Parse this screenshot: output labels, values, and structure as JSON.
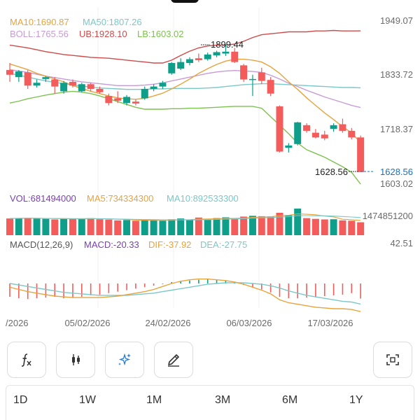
{
  "legend_main": {
    "ma10": "MA10:1690.87",
    "ma50": "MA50:1807.26",
    "boll": "BOLL:1765.56",
    "ub": "UB:1928.10",
    "lb": "LB:1603.02"
  },
  "legend_vol": {
    "vol": "VOL:681494000",
    "ma5": "MA5:734334300",
    "ma10": "MA10:892533300"
  },
  "legend_macd": {
    "name": "MACD(12,26,9)",
    "macd": "MACD:-20.33",
    "dif": "DIF:-37.92",
    "dea": "DEA:-27.75"
  },
  "axis_main": [
    "1949.07",
    "1833.72",
    "1718.37",
    "1603.02"
  ],
  "axis_vol_max": "1474851200",
  "axis_macd_max": "42.51",
  "high_annotation": "1899.44",
  "low_annotation": "1628.56",
  "last_price": "1628.56",
  "dates": [
    "/2026",
    "05/02/2026",
    "24/02/2026",
    "06/03/2026",
    "17/03/2026"
  ],
  "toolbar": {
    "icons": [
      "function-icon",
      "candlestick-icon",
      "sparkle-icon",
      "pencil-icon",
      "fullscreen-icon"
    ]
  },
  "periods": [
    "1D",
    "1W",
    "1M",
    "3M",
    "6M",
    "1Y"
  ],
  "colors": {
    "up": "#0e9e8a",
    "down": "#f45b5b",
    "ma10": "#e8a33b",
    "ma50": "#7bc8c8",
    "boll": "#c79ad9",
    "ub": "#cf4b4b",
    "lb": "#7cc24e",
    "macd": "#7a3fb5"
  },
  "chart_data": {
    "type": "candlestick",
    "price_range": [
      1603.02,
      1949.07
    ],
    "candles": [
      {
        "o": 1845,
        "h": 1860,
        "l": 1820,
        "c": 1835
      },
      {
        "o": 1830,
        "h": 1845,
        "l": 1820,
        "c": 1842
      },
      {
        "o": 1840,
        "h": 1845,
        "l": 1805,
        "c": 1812
      },
      {
        "o": 1812,
        "h": 1825,
        "l": 1808,
        "c": 1818
      },
      {
        "o": 1826,
        "h": 1832,
        "l": 1820,
        "c": 1830
      },
      {
        "o": 1825,
        "h": 1830,
        "l": 1795,
        "c": 1810
      },
      {
        "o": 1800,
        "h": 1822,
        "l": 1795,
        "c": 1818
      },
      {
        "o": 1820,
        "h": 1825,
        "l": 1808,
        "c": 1812
      },
      {
        "o": 1800,
        "h": 1818,
        "l": 1798,
        "c": 1815
      },
      {
        "o": 1815,
        "h": 1818,
        "l": 1800,
        "c": 1805
      },
      {
        "o": 1805,
        "h": 1810,
        "l": 1795,
        "c": 1798
      },
      {
        "o": 1790,
        "h": 1795,
        "l": 1770,
        "c": 1775
      },
      {
        "o": 1785,
        "h": 1800,
        "l": 1775,
        "c": 1780
      },
      {
        "o": 1775,
        "h": 1792,
        "l": 1770,
        "c": 1788
      },
      {
        "o": 1778,
        "h": 1782,
        "l": 1770,
        "c": 1774
      },
      {
        "o": 1785,
        "h": 1810,
        "l": 1782,
        "c": 1805
      },
      {
        "o": 1805,
        "h": 1815,
        "l": 1800,
        "c": 1810
      },
      {
        "o": 1810,
        "h": 1822,
        "l": 1805,
        "c": 1818
      },
      {
        "o": 1838,
        "h": 1862,
        "l": 1835,
        "c": 1860
      },
      {
        "o": 1848,
        "h": 1870,
        "l": 1845,
        "c": 1862
      },
      {
        "o": 1860,
        "h": 1872,
        "l": 1855,
        "c": 1868
      },
      {
        "o": 1870,
        "h": 1880,
        "l": 1862,
        "c": 1866
      },
      {
        "o": 1868,
        "h": 1882,
        "l": 1865,
        "c": 1878
      },
      {
        "o": 1876,
        "h": 1886,
        "l": 1872,
        "c": 1883
      },
      {
        "o": 1880,
        "h": 1899.44,
        "l": 1875,
        "c": 1884
      },
      {
        "o": 1884,
        "h": 1892,
        "l": 1860,
        "c": 1862
      },
      {
        "o": 1855,
        "h": 1858,
        "l": 1820,
        "c": 1825
      },
      {
        "o": 1825,
        "h": 1835,
        "l": 1790,
        "c": 1826
      },
      {
        "o": 1840,
        "h": 1850,
        "l": 1815,
        "c": 1822
      },
      {
        "o": 1824,
        "h": 1830,
        "l": 1790,
        "c": 1795
      },
      {
        "o": 1768,
        "h": 1770,
        "l": 1670,
        "c": 1672
      },
      {
        "o": 1680,
        "h": 1690,
        "l": 1670,
        "c": 1685
      },
      {
        "o": 1688,
        "h": 1735,
        "l": 1685,
        "c": 1734
      },
      {
        "o": 1728,
        "h": 1732,
        "l": 1712,
        "c": 1716
      },
      {
        "o": 1712,
        "h": 1720,
        "l": 1700,
        "c": 1702
      },
      {
        "o": 1708,
        "h": 1716,
        "l": 1696,
        "c": 1700
      },
      {
        "o": 1720,
        "h": 1732,
        "l": 1714,
        "c": 1728
      },
      {
        "o": 1730,
        "h": 1742,
        "l": 1712,
        "c": 1716
      },
      {
        "o": 1716,
        "h": 1722,
        "l": 1698,
        "c": 1702
      },
      {
        "o": 1702,
        "h": 1706,
        "l": 1628.56,
        "c": 1628.56
      }
    ],
    "ma10": [
      1858,
      1852,
      1846,
      1838,
      1832,
      1826,
      1820,
      1812,
      1806,
      1800,
      1795,
      1790,
      1786,
      1784,
      1783,
      1785,
      1790,
      1796,
      1805,
      1815,
      1826,
      1838,
      1848,
      1857,
      1864,
      1868,
      1868,
      1866,
      1862,
      1852,
      1838,
      1820,
      1804,
      1786,
      1770,
      1754,
      1740,
      1725,
      1712,
      1690.87
    ],
    "ma50": [
      1838,
      1834,
      1830,
      1826,
      1822,
      1819,
      1816,
      1813,
      1811,
      1809,
      1807,
      1806,
      1805,
      1804,
      1804,
      1804,
      1805,
      1805,
      1806,
      1806,
      1806,
      1806,
      1807,
      1808,
      1810,
      1812,
      1814,
      1815,
      1816,
      1816,
      1815,
      1814,
      1813,
      1812,
      1811,
      1810,
      1809,
      1808,
      1808,
      1807.26
    ],
    "ub": [
      1898,
      1895,
      1892,
      1888,
      1884,
      1881,
      1878,
      1876,
      1874,
      1872,
      1871,
      1870,
      1868,
      1866,
      1864,
      1862,
      1860,
      1860,
      1866,
      1876,
      1885,
      1892,
      1896,
      1898,
      1898,
      1900,
      1906,
      1914,
      1920,
      1922,
      1924,
      1926,
      1926,
      1926,
      1928,
      1928,
      1929,
      1928,
      1928,
      1928.1
    ],
    "boll": [
      1846,
      1843,
      1840,
      1836,
      1832,
      1829,
      1826,
      1823,
      1820,
      1818,
      1816,
      1814,
      1812,
      1812,
      1812,
      1813,
      1815,
      1818,
      1822,
      1826,
      1830,
      1834,
      1838,
      1841,
      1843,
      1844,
      1843,
      1842,
      1840,
      1834,
      1826,
      1817,
      1810,
      1802,
      1795,
      1788,
      1782,
      1776,
      1770,
      1765.56
    ],
    "lb": [
      1775,
      1779,
      1784,
      1788,
      1792,
      1795,
      1798,
      1800,
      1798,
      1795,
      1790,
      1784,
      1778,
      1772,
      1766,
      1762,
      1762,
      1762,
      1763,
      1763,
      1764,
      1764,
      1765,
      1766,
      1767,
      1768,
      1768,
      1768,
      1764,
      1746,
      1728,
      1710,
      1690,
      1676,
      1668,
      1660,
      1650,
      1640,
      1628,
      1603.02
    ],
    "volume_max": 1474851200,
    "volume": [
      880000000,
      900000000,
      920000000,
      870000000,
      860000000,
      830000000,
      880000000,
      850000000,
      870000000,
      900000000,
      840000000,
      820000000,
      780000000,
      800000000,
      760000000,
      790000000,
      800000000,
      760000000,
      840000000,
      880000000,
      820000000,
      930000000,
      810000000,
      900000000,
      940000000,
      860000000,
      980000000,
      1020000000,
      1000000000,
      990000000,
      1180000000,
      1050000000,
      1400000000,
      900000000,
      860000000,
      830000000,
      840000000,
      780000000,
      760000000,
      681494000
    ],
    "volume_up": [
      false,
      true,
      false,
      true,
      true,
      false,
      true,
      false,
      true,
      false,
      false,
      false,
      false,
      true,
      false,
      true,
      true,
      true,
      true,
      true,
      true,
      false,
      true,
      true,
      true,
      false,
      false,
      true,
      false,
      false,
      false,
      true,
      true,
      false,
      false,
      false,
      true,
      false,
      false,
      false
    ],
    "macd_max": 42.51,
    "macd": [
      -18,
      -20,
      -21,
      -20,
      -19,
      -18,
      -20,
      -19,
      -18,
      -16,
      -15,
      -13,
      -11,
      -9,
      -7,
      -5,
      -3,
      -1,
      2,
      3,
      4,
      5,
      6,
      5,
      4,
      1,
      -2,
      -5,
      -8,
      -12,
      -18,
      -20,
      -20,
      -19,
      -18,
      -17,
      -16,
      -15,
      -13,
      -20.33
    ],
    "dif": [
      -5,
      -8,
      -11,
      -13,
      -15,
      -17,
      -18,
      -19,
      -19,
      -19,
      -19,
      -18,
      -17,
      -15,
      -13,
      -11,
      -8,
      -4,
      0,
      3,
      5,
      6,
      6,
      5,
      4,
      2,
      -1,
      -5,
      -9,
      -14,
      -22,
      -26,
      -28,
      -30,
      -32,
      -33,
      -34,
      -34,
      -35,
      -37.92
    ],
    "dea": [
      0,
      -2,
      -4,
      -6,
      -8,
      -10,
      -12,
      -13,
      -14,
      -15,
      -16,
      -16,
      -16,
      -16,
      -15,
      -14,
      -13,
      -11,
      -9,
      -7,
      -5,
      -3,
      -1,
      0,
      1,
      1,
      1,
      0,
      -1,
      -3,
      -6,
      -10,
      -13,
      -16,
      -18,
      -20,
      -22,
      -24,
      -25,
      -27.75
    ]
  }
}
